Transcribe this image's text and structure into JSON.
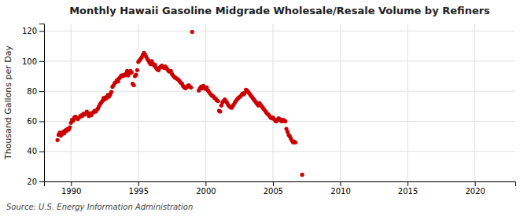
{
  "chart_data": {
    "type": "scatter",
    "title": "Monthly Hawaii Gasoline Midgrade Wholesale/Resale Volume by Refiners",
    "y_label": "Thousand Gallons per Day",
    "source": "Source: U.S. Energy Information Administration",
    "color": "#cc0000",
    "grid": true,
    "xlim": [
      1988.0,
      2023.0
    ],
    "ylim": [
      20,
      125
    ],
    "xticks": [
      1990,
      1995,
      2000,
      2005,
      2010,
      2015,
      2020
    ],
    "yticks": [
      20,
      40,
      60,
      80,
      100,
      120
    ],
    "x": [
      1989.0,
      1989.08,
      1989.17,
      1989.25,
      1989.33,
      1989.42,
      1989.5,
      1989.58,
      1989.67,
      1989.75,
      1989.83,
      1989.92,
      1990.0,
      1990.08,
      1990.17,
      1990.25,
      1990.33,
      1990.42,
      1990.5,
      1990.58,
      1990.67,
      1990.75,
      1990.83,
      1990.92,
      1991.0,
      1991.08,
      1991.17,
      1991.25,
      1991.33,
      1991.42,
      1991.5,
      1991.58,
      1991.67,
      1991.75,
      1991.83,
      1991.92,
      1992.0,
      1992.08,
      1992.17,
      1992.25,
      1992.33,
      1992.42,
      1992.5,
      1992.58,
      1992.67,
      1992.75,
      1992.83,
      1992.92,
      1993.0,
      1993.08,
      1993.17,
      1993.25,
      1993.33,
      1993.42,
      1993.5,
      1993.58,
      1993.67,
      1993.75,
      1993.83,
      1993.92,
      1994.0,
      1994.08,
      1994.17,
      1994.25,
      1994.33,
      1994.42,
      1994.5,
      1994.58,
      1994.67,
      1994.75,
      1994.83,
      1994.92,
      1995.0,
      1995.08,
      1995.17,
      1995.25,
      1995.33,
      1995.42,
      1995.5,
      1995.58,
      1995.67,
      1995.75,
      1995.83,
      1995.92,
      1996.0,
      1996.08,
      1996.17,
      1996.25,
      1996.33,
      1996.42,
      1996.5,
      1996.58,
      1996.67,
      1996.75,
      1996.83,
      1996.92,
      1997.0,
      1997.08,
      1997.17,
      1997.25,
      1997.33,
      1997.42,
      1997.5,
      1997.58,
      1997.67,
      1997.75,
      1997.83,
      1997.92,
      1998.0,
      1998.08,
      1998.17,
      1998.25,
      1998.33,
      1998.42,
      1998.5,
      1998.58,
      1998.67,
      1998.75,
      1998.83,
      1998.92,
      1999.0,
      1999.5,
      1999.58,
      1999.67,
      1999.75,
      1999.83,
      1999.92,
      2000.0,
      2000.08,
      2000.17,
      2000.25,
      2000.33,
      2000.42,
      2000.5,
      2000.58,
      2000.67,
      2000.75,
      2000.83,
      2000.92,
      2001.0,
      2001.08,
      2001.17,
      2001.25,
      2001.33,
      2001.42,
      2001.5,
      2001.58,
      2001.67,
      2001.75,
      2001.83,
      2001.92,
      2002.0,
      2002.08,
      2002.17,
      2002.25,
      2002.33,
      2002.42,
      2002.5,
      2002.58,
      2002.67,
      2002.75,
      2002.83,
      2002.92,
      2003.0,
      2003.08,
      2003.17,
      2003.25,
      2003.33,
      2003.42,
      2003.5,
      2003.58,
      2003.67,
      2003.75,
      2003.83,
      2003.92,
      2004.0,
      2004.08,
      2004.17,
      2004.25,
      2004.33,
      2004.42,
      2004.5,
      2004.58,
      2004.67,
      2004.75,
      2004.83,
      2004.92,
      2005.0,
      2005.08,
      2005.17,
      2005.25,
      2005.33,
      2005.42,
      2005.5,
      2005.58,
      2005.67,
      2005.75,
      2005.83,
      2005.92,
      2006.0,
      2006.08,
      2006.17,
      2006.25,
      2006.33,
      2006.42,
      2006.5,
      2006.58,
      2006.67,
      2007.17
    ],
    "values": [
      47.5,
      51.0,
      52.5,
      50.5,
      51.5,
      53.0,
      52.0,
      54.0,
      53.5,
      55.0,
      54.5,
      56.0,
      59.0,
      61.0,
      60.5,
      62.5,
      63.0,
      62.0,
      61.5,
      62.5,
      63.0,
      64.0,
      63.5,
      65.0,
      64.5,
      65.0,
      66.5,
      65.5,
      63.5,
      65.0,
      64.0,
      65.5,
      66.0,
      67.0,
      66.5,
      67.5,
      68.5,
      70.0,
      71.5,
      72.5,
      73.5,
      75.5,
      74.5,
      76.0,
      75.5,
      77.5,
      76.5,
      78.0,
      79.5,
      83.0,
      84.0,
      85.5,
      86.0,
      87.5,
      86.5,
      88.5,
      89.5,
      90.5,
      90.0,
      91.0,
      90.5,
      91.5,
      93.5,
      90.5,
      92.0,
      93.5,
      92.5,
      85.0,
      84.0,
      90.0,
      91.0,
      94.0,
      99.5,
      100.5,
      101.5,
      102.5,
      104.0,
      105.5,
      104.5,
      103.0,
      101.5,
      100.5,
      99.0,
      98.0,
      100.0,
      98.5,
      97.0,
      97.5,
      95.5,
      94.5,
      94.0,
      95.5,
      96.5,
      97.0,
      96.0,
      95.5,
      96.5,
      95.5,
      94.5,
      93.5,
      93.0,
      93.5,
      91.5,
      90.5,
      89.5,
      89.0,
      88.5,
      88.0,
      87.5,
      86.5,
      85.5,
      85.0,
      83.5,
      82.5,
      82.0,
      82.5,
      83.5,
      84.0,
      83.0,
      82.5,
      119.5,
      80.5,
      82.0,
      83.0,
      82.0,
      83.5,
      82.5,
      81.5,
      82.5,
      80.5,
      79.5,
      78.5,
      77.5,
      77.0,
      76.5,
      75.5,
      75.0,
      74.0,
      73.5,
      67.0,
      66.5,
      70.5,
      72.5,
      73.5,
      74.5,
      73.5,
      72.5,
      71.0,
      70.0,
      69.5,
      69.0,
      70.0,
      71.0,
      72.5,
      73.5,
      74.5,
      75.5,
      76.0,
      76.5,
      77.5,
      78.5,
      78.0,
      79.0,
      81.0,
      80.5,
      79.5,
      78.5,
      77.5,
      76.5,
      75.5,
      74.5,
      73.5,
      72.5,
      71.5,
      70.5,
      72.0,
      71.0,
      70.0,
      69.0,
      68.0,
      67.0,
      66.0,
      65.0,
      64.5,
      63.5,
      62.5,
      62.0,
      62.5,
      61.5,
      60.5,
      60.0,
      61.0,
      62.0,
      61.5,
      60.5,
      60.0,
      61.0,
      60.5,
      60.0,
      55.0,
      53.0,
      51.0,
      50.0,
      48.5,
      47.0,
      46.0,
      46.5,
      46.0,
      24.5
    ]
  }
}
